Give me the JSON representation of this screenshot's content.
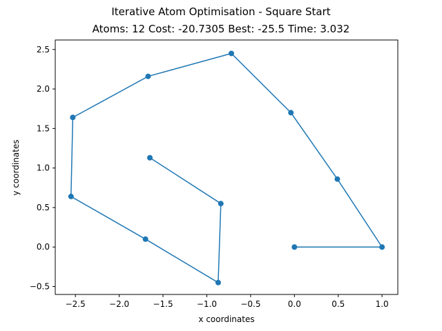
{
  "chart_data": {
    "type": "line",
    "title": "Iterative Atom Optimisation - Square Start",
    "subtitle": "Atoms: 12 Cost: -20.7305 Best: -25.5 Time: 3.032",
    "xlabel": "x coordinates",
    "ylabel": "y coordinates",
    "xlim": [
      -2.73,
      1.18
    ],
    "ylim": [
      -0.6,
      2.62
    ],
    "xticks": [
      -2.5,
      -2.0,
      -1.5,
      -1.0,
      -0.5,
      0.0,
      0.5,
      1.0
    ],
    "yticks": [
      -0.5,
      0.0,
      0.5,
      1.0,
      1.5,
      2.0,
      2.5
    ],
    "grid": false,
    "color": "#1f77b4",
    "series": [
      {
        "x": [
          0.0,
          1.0,
          0.49,
          -0.04,
          -0.72,
          -1.67,
          -2.53,
          -2.55,
          -1.7,
          -0.87,
          -0.84,
          -1.65
        ],
        "y": [
          0.0,
          0.0,
          0.86,
          1.7,
          2.45,
          2.16,
          1.64,
          0.64,
          0.1,
          -0.45,
          0.55,
          1.13
        ]
      }
    ]
  }
}
